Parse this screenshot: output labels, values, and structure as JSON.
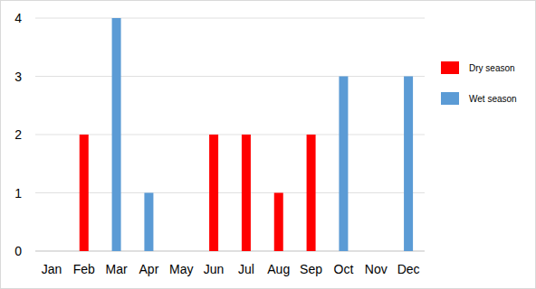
{
  "chart_data": {
    "type": "bar",
    "categories": [
      "Jan",
      "Feb",
      "Mar",
      "Apr",
      "May",
      "Jun",
      "Jul",
      "Aug",
      "Sep",
      "Oct",
      "Nov",
      "Dec"
    ],
    "series": [
      {
        "name": "Dry season",
        "color": "#ff0000",
        "values": [
          null,
          2,
          null,
          null,
          null,
          2,
          2,
          1,
          2,
          null,
          null,
          null
        ]
      },
      {
        "name": "Wet season",
        "color": "#5b9bd5",
        "values": [
          null,
          null,
          4,
          1,
          null,
          null,
          null,
          null,
          null,
          3,
          null,
          3
        ]
      }
    ],
    "ylim": [
      0,
      4
    ],
    "yticks": [
      0,
      1,
      2,
      3,
      4
    ],
    "grid": true,
    "legend": "right"
  }
}
